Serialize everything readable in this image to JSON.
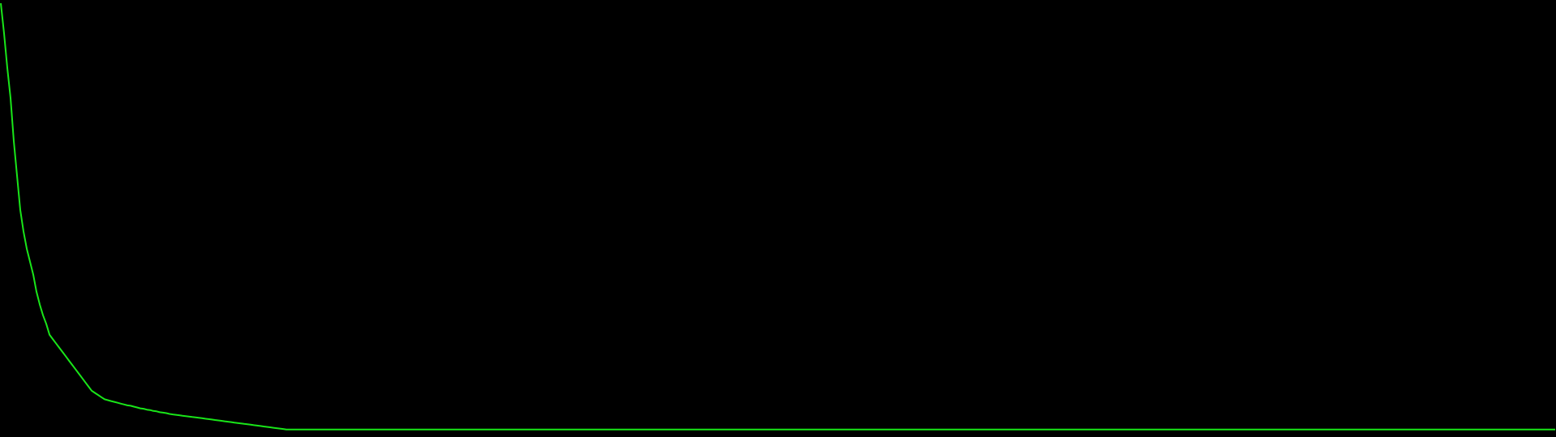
{
  "chart_data": {
    "type": "line",
    "title": "",
    "xlabel": "",
    "ylabel": "",
    "grid": false,
    "legend": "none",
    "line_color": "#19e619",
    "background_color": "#000000",
    "ylim": [
      0,
      1
    ],
    "x": [
      0,
      4,
      8,
      12,
      16,
      20,
      24,
      28,
      32,
      36,
      40,
      44,
      48,
      52,
      56,
      60,
      64,
      68,
      72,
      76,
      80,
      84,
      88,
      92,
      96,
      100,
      104,
      108,
      112,
      116,
      120,
      124,
      128,
      132,
      136,
      140,
      144,
      148,
      152,
      156,
      160,
      164,
      168,
      172,
      176,
      180,
      184,
      188,
      192,
      196,
      200,
      204,
      208,
      212,
      216,
      220,
      224,
      228,
      232,
      236,
      240,
      244,
      248,
      252,
      256,
      260,
      264,
      268,
      272,
      276,
      280,
      284,
      288,
      292,
      296,
      300,
      304,
      308,
      312,
      316,
      320,
      324,
      328,
      332,
      336,
      340,
      344,
      348,
      352,
      356,
      360,
      364,
      368,
      372,
      376,
      380,
      384,
      388,
      392,
      396,
      400,
      404,
      408,
      412,
      416,
      420,
      424,
      428,
      432,
      436,
      440,
      444,
      448,
      452,
      456,
      460,
      464,
      468,
      472,
      476,
      480,
      484,
      488,
      492,
      496,
      500,
      504,
      508,
      512,
      516,
      520,
      524,
      528,
      532,
      536,
      540,
      544,
      548,
      552,
      556,
      560,
      564,
      568,
      572,
      576,
      580,
      584,
      588,
      592,
      596,
      600,
      604,
      608,
      612,
      616,
      620,
      624,
      628,
      632,
      636,
      640,
      644,
      648,
      652,
      656,
      660,
      664,
      668,
      672,
      676,
      680,
      684,
      688,
      692,
      696,
      700,
      704,
      708,
      712,
      716,
      720,
      724,
      728,
      732,
      736,
      740,
      744,
      748,
      752,
      756,
      760,
      764,
      768,
      772,
      776,
      780,
      784,
      788,
      792,
      796,
      800,
      804,
      808,
      812,
      816,
      820,
      824,
      828,
      832,
      836,
      840,
      844,
      848,
      852,
      856,
      860,
      864,
      868,
      872,
      876,
      880,
      884,
      888,
      892,
      896,
      900,
      904,
      908,
      912,
      916,
      920,
      924,
      928,
      932,
      936,
      940,
      944,
      948,
      952,
      956,
      960,
      964,
      968,
      972,
      976,
      980,
      984,
      988,
      992,
      996,
      1000,
      1004,
      1008,
      1012,
      1016,
      1020,
      1024,
      1028,
      1032,
      1036,
      1040,
      1044,
      1048,
      1052,
      1056,
      1060,
      1064,
      1068,
      1072,
      1076,
      1080,
      1084,
      1088,
      1092,
      1096,
      1100,
      1104,
      1108,
      1112,
      1116,
      1120,
      1124,
      1128,
      1132,
      1136,
      1140,
      1144,
      1148,
      1152,
      1156,
      1160,
      1164,
      1168,
      1172,
      1176,
      1180,
      1184,
      1188,
      1192,
      1196,
      1200,
      1204,
      1208,
      1212,
      1216,
      1220,
      1224,
      1228,
      1232,
      1236,
      1240,
      1244,
      1248,
      1252,
      1256,
      1260,
      1264,
      1268,
      1272,
      1276,
      1280,
      1284,
      1288,
      1292,
      1296,
      1300,
      1304,
      1308,
      1312,
      1316,
      1320,
      1324,
      1328,
      1332,
      1336,
      1340,
      1344,
      1348,
      1352,
      1356,
      1360,
      1364,
      1368,
      1372,
      1376,
      1380,
      1384,
      1388,
      1392,
      1396,
      1400,
      1404,
      1408,
      1412,
      1416,
      1420,
      1424,
      1428,
      1432,
      1436,
      1440,
      1444,
      1448,
      1452,
      1456,
      1460,
      1464,
      1468,
      1472,
      1476,
      1480,
      1484,
      1488,
      1492,
      1496,
      1500,
      1504,
      1508,
      1512,
      1516,
      1520,
      1524,
      1528,
      1532,
      1536,
      1540,
      1544,
      1548,
      1552,
      1556,
      1560,
      1564,
      1568,
      1572,
      1576,
      1580,
      1584,
      1588,
      1592,
      1596,
      1600,
      1604,
      1608,
      1612,
      1616,
      1620,
      1624,
      1628,
      1632,
      1636,
      1640,
      1644,
      1648,
      1652,
      1656,
      1660,
      1664,
      1668,
      1672,
      1676,
      1680,
      1684,
      1688,
      1692,
      1696,
      1700,
      1704,
      1708,
      1712,
      1716,
      1720,
      1724,
      1728,
      1732,
      1736,
      1740,
      1744,
      1748,
      1752,
      1756,
      1760,
      1764,
      1768,
      1772,
      1776,
      1780,
      1784,
      1788,
      1792,
      1796,
      1800,
      1804,
      1808,
      1812,
      1816,
      1820,
      1824,
      1828,
      1832,
      1836,
      1840,
      1844,
      1848,
      1852,
      1856,
      1860,
      1864,
      1868,
      1872,
      1876,
      1880,
      1884,
      1888,
      1892,
      1896,
      1900,
      1904,
      1908,
      1912,
      1916
    ],
    "series": [
      {
        "name": "",
        "values": [
          1.0,
          0.93,
          0.85,
          0.78,
          0.68,
          0.6,
          0.52,
          0.47,
          0.43,
          0.4,
          0.37,
          0.33,
          0.3,
          0.275,
          0.255,
          0.23,
          0.22,
          0.21,
          0.2,
          0.19,
          0.18,
          0.17,
          0.16,
          0.15,
          0.14,
          0.13,
          0.12,
          0.11,
          0.1,
          0.095,
          0.09,
          0.085,
          0.08,
          0.078,
          0.076,
          0.074,
          0.072,
          0.07,
          0.068,
          0.066,
          0.065,
          0.063,
          0.061,
          0.059,
          0.058,
          0.056,
          0.055,
          0.053,
          0.052,
          0.05,
          0.049,
          0.048,
          0.046,
          0.045,
          0.044,
          0.043,
          0.042,
          0.041,
          0.04,
          0.039,
          0.038,
          0.037,
          0.036,
          0.035,
          0.034,
          0.033,
          0.032,
          0.031,
          0.03,
          0.029,
          0.028,
          0.027,
          0.026,
          0.025,
          0.024,
          0.023,
          0.022,
          0.021,
          0.02,
          0.019,
          0.018,
          0.017,
          0.016,
          0.015,
          0.014,
          0.013,
          0.012,
          0.011,
          0.01,
          0.01,
          0.01,
          0.01,
          0.01,
          0.01,
          0.01,
          0.01,
          0.01,
          0.01,
          0.01,
          0.01,
          0.01,
          0.01,
          0.01,
          0.01,
          0.01,
          0.01,
          0.01,
          0.01,
          0.01,
          0.01,
          0.01,
          0.01,
          0.01,
          0.01,
          0.01,
          0.01,
          0.01,
          0.01,
          0.01,
          0.01,
          0.01,
          0.01,
          0.01,
          0.01,
          0.01,
          0.01,
          0.01,
          0.01,
          0.01,
          0.01,
          0.01,
          0.01,
          0.01,
          0.01,
          0.01,
          0.01,
          0.01,
          0.01,
          0.01,
          0.01,
          0.01,
          0.01,
          0.01,
          0.01,
          0.01,
          0.01,
          0.01,
          0.01,
          0.01,
          0.01,
          0.01,
          0.01,
          0.01,
          0.01,
          0.01,
          0.01,
          0.01,
          0.01,
          0.01,
          0.01,
          0.01,
          0.01,
          0.01,
          0.01,
          0.01,
          0.01,
          0.01,
          0.01,
          0.01,
          0.01,
          0.01,
          0.01,
          0.01,
          0.01,
          0.01,
          0.01,
          0.01,
          0.01,
          0.01,
          0.01,
          0.01,
          0.01,
          0.01,
          0.01,
          0.01,
          0.01,
          0.01,
          0.01,
          0.01,
          0.01,
          0.01,
          0.01,
          0.01,
          0.01,
          0.01,
          0.01,
          0.01,
          0.01,
          0.01,
          0.01,
          0.01,
          0.01,
          0.01,
          0.01,
          0.01,
          0.01,
          0.01,
          0.01,
          0.01,
          0.01,
          0.01,
          0.01,
          0.01,
          0.01,
          0.01,
          0.01,
          0.01,
          0.01,
          0.01,
          0.01,
          0.01,
          0.01,
          0.01,
          0.01,
          0.01,
          0.01,
          0.01,
          0.01,
          0.01,
          0.01,
          0.01,
          0.01,
          0.01,
          0.01,
          0.01,
          0.01,
          0.01,
          0.01,
          0.01,
          0.01,
          0.01,
          0.01,
          0.01,
          0.01,
          0.01,
          0.01,
          0.01,
          0.01,
          0.01,
          0.01,
          0.01,
          0.01,
          0.01,
          0.01,
          0.01,
          0.01,
          0.01,
          0.01,
          0.01,
          0.01,
          0.01,
          0.01,
          0.01,
          0.01,
          0.01,
          0.01,
          0.01,
          0.01,
          0.01,
          0.01,
          0.01,
          0.01,
          0.01,
          0.01,
          0.01,
          0.01,
          0.01,
          0.01,
          0.01,
          0.01,
          0.01,
          0.01,
          0.01,
          0.01,
          0.01,
          0.01,
          0.01,
          0.01,
          0.01,
          0.01,
          0.01,
          0.01,
          0.01,
          0.01,
          0.01,
          0.01,
          0.01,
          0.01,
          0.01,
          0.01,
          0.01,
          0.01,
          0.01,
          0.01,
          0.01,
          0.01,
          0.01,
          0.01,
          0.01,
          0.01,
          0.01,
          0.01,
          0.01,
          0.01,
          0.01,
          0.01,
          0.01,
          0.01,
          0.01,
          0.01,
          0.01,
          0.01,
          0.01,
          0.01,
          0.01,
          0.01,
          0.01,
          0.01,
          0.01,
          0.01,
          0.01,
          0.01,
          0.01,
          0.01,
          0.01,
          0.01,
          0.01,
          0.01,
          0.01,
          0.01,
          0.01,
          0.01,
          0.01,
          0.01,
          0.01,
          0.01,
          0.01,
          0.01,
          0.01,
          0.01,
          0.01,
          0.01,
          0.01,
          0.01,
          0.01,
          0.01,
          0.01,
          0.01,
          0.01,
          0.01,
          0.01,
          0.01,
          0.01,
          0.01,
          0.01,
          0.01,
          0.01,
          0.01,
          0.01,
          0.01,
          0.01,
          0.01,
          0.01,
          0.01,
          0.01,
          0.01,
          0.01,
          0.01,
          0.01,
          0.01,
          0.01,
          0.01,
          0.01,
          0.01,
          0.01,
          0.01,
          0.01,
          0.01,
          0.01,
          0.01,
          0.01,
          0.01,
          0.01,
          0.01,
          0.01,
          0.01,
          0.01,
          0.01,
          0.01,
          0.01,
          0.01,
          0.01,
          0.01,
          0.01,
          0.01,
          0.01,
          0.01,
          0.01,
          0.01,
          0.01,
          0.01,
          0.01,
          0.01,
          0.01,
          0.01,
          0.01,
          0.01,
          0.01,
          0.01,
          0.01,
          0.01,
          0.01,
          0.01,
          0.01,
          0.01,
          0.01,
          0.01,
          0.01,
          0.01,
          0.01,
          0.01,
          0.01,
          0.01,
          0.01,
          0.01,
          0.01,
          0.01,
          0.01,
          0.01,
          0.01,
          0.01,
          0.01,
          0.01,
          0.01,
          0.01,
          0.01,
          0.01,
          0.01,
          0.01,
          0.01,
          0.01,
          0.01,
          0.01,
          0.01,
          0.01,
          0.01,
          0.01,
          0.01,
          0.01,
          0.01,
          0.01,
          0.01,
          0.01,
          0.01,
          0.01,
          0.01,
          0.01,
          0.01,
          0.01,
          0.01,
          0.01,
          0.01,
          0.01,
          0.01,
          0.01,
          0.01,
          0.01,
          0.01,
          0.01,
          0.01
        ]
      }
    ]
  }
}
